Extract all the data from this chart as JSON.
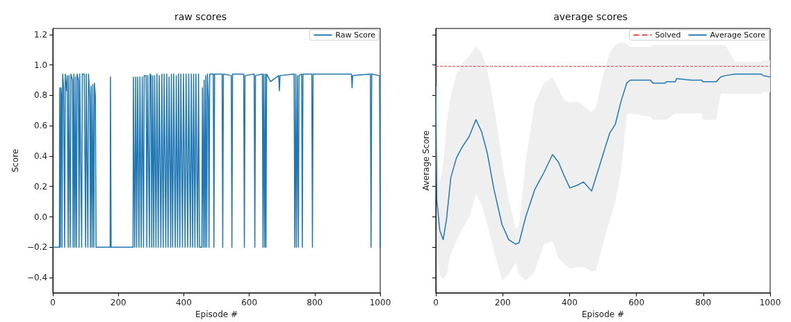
{
  "chart_data": [
    {
      "type": "line",
      "title": "raw scores",
      "xlabel": "Episode #",
      "ylabel": "Score",
      "legend": "top right",
      "grid": false,
      "xlim": [
        0,
        1000
      ],
      "xticks": [
        0,
        200,
        400,
        600,
        800,
        1000
      ],
      "ylim": [
        -0.5,
        1.24
      ],
      "yticks": [
        {
          "value": -0.4,
          "label": "−0.4"
        },
        {
          "value": -0.2,
          "label": "−0.2"
        },
        {
          "value": 0,
          "label": "0.0"
        },
        {
          "value": 0.2,
          "label": "0.2"
        },
        {
          "value": 0.4,
          "label": "0.4"
        },
        {
          "value": 0.6,
          "label": "0.6"
        },
        {
          "value": 0.8,
          "label": "0.8"
        },
        {
          "value": 1,
          "label": "1.0"
        },
        {
          "value": 1.2,
          "label": "1.2"
        }
      ],
      "series": [
        {
          "name": "Raw Score",
          "color": "#1f77b4",
          "x": [
            0,
            20,
            21,
            23,
            25,
            27,
            28,
            30,
            33,
            36,
            38,
            42,
            44,
            47,
            49,
            53,
            55,
            60,
            62,
            64,
            67,
            69,
            72,
            74,
            78,
            80,
            82,
            88,
            90,
            96,
            100,
            102,
            107,
            109,
            113,
            115,
            117,
            120,
            122,
            125,
            127,
            130,
            132,
            175,
            176,
            178,
            245,
            246,
            250,
            253,
            256,
            259,
            263,
            266,
            270,
            273,
            277,
            279,
            285,
            287,
            290,
            295,
            297,
            300,
            302,
            305,
            308,
            311,
            315,
            318,
            322,
            325,
            330,
            333,
            337,
            340,
            345,
            348,
            352,
            355,
            360,
            362,
            366,
            369,
            374,
            377,
            381,
            384,
            388,
            391,
            396,
            399,
            404,
            407,
            412,
            415,
            420,
            423,
            427,
            430,
            434,
            437,
            442,
            445,
            448,
            455,
            457,
            460,
            462,
            465,
            467,
            470,
            472,
            475,
            477,
            479,
            490,
            492,
            494,
            517,
            519,
            521,
            545,
            547,
            549,
            583,
            585,
            587,
            615,
            617,
            619,
            640,
            642,
            644,
            647,
            649,
            651,
            653,
            665,
            690,
            692,
            694,
            737,
            739,
            742,
            744,
            747,
            750,
            752,
            760,
            762,
            764,
            791,
            793,
            795,
            912,
            914,
            916,
            970,
            972,
            974,
            998,
            1000
          ],
          "values": [
            -0.2,
            -0.2,
            0.85,
            -0.2,
            0.85,
            0.78,
            -0.2,
            0.94,
            0.85,
            -0.2,
            0.94,
            0.83,
            0.93,
            -0.2,
            0.93,
            -0.2,
            0.94,
            0.9,
            -0.2,
            0.94,
            -0.2,
            0.92,
            -0.2,
            0.94,
            0.9,
            -0.2,
            0.94,
            -0.2,
            0.94,
            0.94,
            -0.2,
            0.94,
            -0.2,
            0.94,
            0.78,
            -0.2,
            0.86,
            -0.2,
            0.87,
            -0.2,
            0.88,
            0.79,
            -0.2,
            -0.2,
            0.92,
            -0.2,
            -0.2,
            0.92,
            -0.2,
            0.92,
            -0.2,
            0.92,
            -0.2,
            0.92,
            -0.2,
            0.92,
            -0.2,
            0.93,
            0.93,
            -0.2,
            0.93,
            -0.2,
            0.94,
            0.93,
            -0.2,
            0.93,
            -0.2,
            0.93,
            -0.2,
            0.94,
            -0.2,
            0.93,
            -0.2,
            0.94,
            -0.2,
            0.94,
            -0.2,
            0.94,
            -0.2,
            0.92,
            -0.2,
            0.94,
            -0.2,
            0.94,
            -0.2,
            0.93,
            -0.2,
            0.94,
            -0.2,
            0.94,
            -0.2,
            0.94,
            -0.2,
            0.94,
            -0.2,
            0.94,
            -0.2,
            0.94,
            -0.2,
            0.94,
            -0.2,
            0.94,
            -0.2,
            0.94,
            -0.2,
            -0.2,
            0.85,
            -0.2,
            0.9,
            -0.2,
            0.93,
            -0.2,
            0.94,
            0.78,
            -0.2,
            0.94,
            0.94,
            -0.2,
            0.94,
            0.94,
            -0.2,
            0.94,
            0.93,
            -0.2,
            0.94,
            0.94,
            -0.2,
            0.93,
            0.94,
            -0.2,
            0.93,
            0.94,
            -0.2,
            0.94,
            -0.2,
            0.94,
            -0.2,
            0.94,
            0.89,
            0.93,
            0.83,
            0.93,
            0.94,
            -0.2,
            0.94,
            -0.2,
            0.93,
            -0.2,
            0.93,
            0.94,
            -0.2,
            0.94,
            0.94,
            -0.2,
            0.94,
            0.94,
            0.85,
            0.93,
            0.94,
            -0.2,
            0.94,
            0.93,
            -0.2
          ]
        }
      ]
    },
    {
      "type": "line",
      "title": "average scores",
      "xlabel": "Episode #",
      "ylabel": "Average Score",
      "legend": "top right",
      "grid": false,
      "tick_labels": "x",
      "xlim": [
        0,
        1000
      ],
      "xticks": [
        0,
        200,
        400,
        600,
        800,
        1000
      ],
      "ylim": [
        -0.5,
        1.24
      ],
      "yticks": [
        -0.4,
        -0.2,
        0,
        0.2,
        0.4,
        0.6,
        0.8,
        1,
        1.2
      ],
      "ref_lines": [
        {
          "axis": "y",
          "value": 0.99,
          "label": "Solved",
          "color": "#e8403a",
          "line_style": "dashed"
        }
      ],
      "series": [
        {
          "name": "Average Score",
          "color": "#1f77b4",
          "x": [
            0,
            3,
            12,
            22,
            32,
            45,
            62,
            79,
            100,
            120,
            137,
            154,
            174,
            198,
            218,
            239,
            249,
            269,
            296,
            323,
            349,
            367,
            384,
            401,
            425,
            442,
            466,
            479,
            500,
            520,
            537,
            554,
            571,
            581,
            642,
            649,
            686,
            690,
            717,
            720,
            764,
            795,
            798,
            839,
            852,
            866,
            896,
            974,
            978,
            1000
          ],
          "values": [
            0.86,
            0.11,
            -0.09,
            -0.15,
            -0.015,
            0.26,
            0.39,
            0.46,
            0.53,
            0.64,
            0.56,
            0.42,
            0.18,
            -0.05,
            -0.15,
            -0.18,
            -0.17,
            0,
            0.18,
            0.29,
            0.41,
            0.36,
            0.27,
            0.19,
            0.21,
            0.23,
            0.17,
            0.26,
            0.41,
            0.55,
            0.61,
            0.76,
            0.88,
            0.9,
            0.9,
            0.88,
            0.88,
            0.89,
            0.89,
            0.91,
            0.9,
            0.9,
            0.89,
            0.89,
            0.92,
            0.93,
            0.94,
            0.94,
            0.93,
            0.92
          ],
          "upper": [
            0.86,
            0.45,
            0.22,
            0.35,
            0.61,
            0.8,
            0.94,
            1.01,
            1.06,
            1.12,
            1.08,
            0.97,
            0.73,
            0.37,
            0.11,
            -0.08,
            -0.06,
            0.37,
            0.75,
            0.88,
            0.92,
            0.84,
            0.77,
            0.75,
            0.76,
            0.73,
            0.69,
            0.72,
            0.93,
            1.08,
            1.13,
            1.15,
            1.14,
            1.12,
            1.12,
            1.13,
            1.13,
            1.13,
            1.13,
            1.13,
            1.13,
            1.13,
            1.13,
            1.13,
            1.13,
            1.13,
            1.02,
            1.02,
            1.03,
            1.03
          ],
          "lower": [
            0.86,
            -0.2,
            -0.38,
            -0.41,
            -0.38,
            -0.24,
            -0.16,
            -0.08,
            0,
            0.15,
            0.08,
            -0.05,
            -0.22,
            -0.42,
            -0.38,
            -0.3,
            -0.38,
            -0.42,
            -0.36,
            -0.18,
            -0.16,
            -0.27,
            -0.31,
            -0.34,
            -0.33,
            -0.33,
            -0.36,
            -0.35,
            -0.18,
            -0.02,
            0.1,
            0.3,
            0.67,
            0.68,
            0.66,
            0.64,
            0.64,
            0.64,
            0.68,
            0.68,
            0.68,
            0.68,
            0.64,
            0.64,
            0.81,
            0.81,
            0.81,
            0.81,
            0.82,
            0.82
          ]
        }
      ]
    }
  ]
}
